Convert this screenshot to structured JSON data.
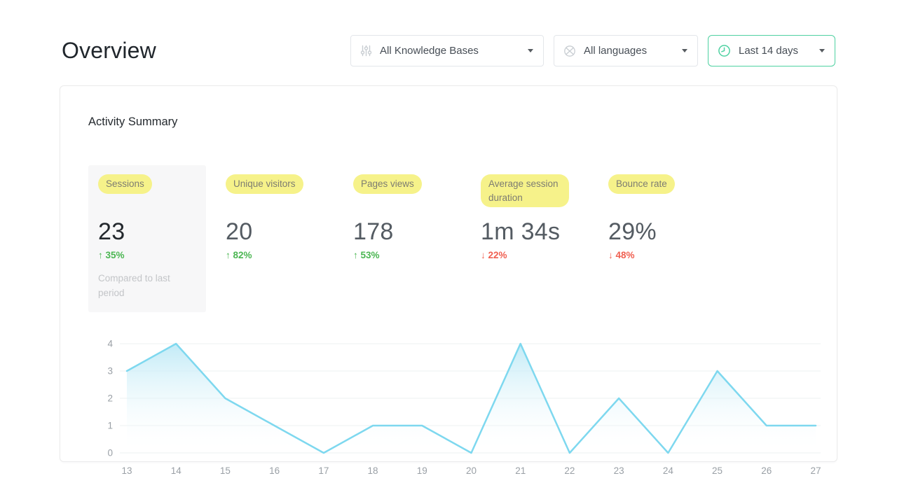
{
  "page": {
    "title": "Overview"
  },
  "filters": {
    "knowledge_bases": {
      "label": "All Knowledge Bases",
      "icon": "sliders-icon"
    },
    "languages": {
      "label": "All languages",
      "icon": "globe-icon"
    },
    "date_range": {
      "label": "Last 14 days",
      "icon": "clock-icon",
      "accent": "#4ed1a1"
    }
  },
  "card": {
    "title": "Activity Summary",
    "metrics": [
      {
        "label": "Sessions",
        "value": "23",
        "delta": "35%",
        "direction": "up",
        "note": "Compared to last period",
        "selected": true
      },
      {
        "label": "Unique visitors",
        "value": "20",
        "delta": "82%",
        "direction": "up",
        "note": "",
        "selected": false
      },
      {
        "label": "Pages views",
        "value": "178",
        "delta": "53%",
        "direction": "up",
        "note": "",
        "selected": false
      },
      {
        "label": "Average session duration",
        "value": "1m 34s",
        "delta": "22%",
        "direction": "down",
        "note": "",
        "selected": false
      },
      {
        "label": "Bounce rate",
        "value": "29%",
        "delta": "48%",
        "direction": "down",
        "note": "",
        "selected": false
      }
    ]
  },
  "icons": {
    "arrow_up": "↑",
    "arrow_down": "↓"
  },
  "chart_data": {
    "type": "area",
    "title": "Sessions per day",
    "x": [
      13,
      14,
      15,
      16,
      17,
      18,
      19,
      20,
      21,
      22,
      23,
      24,
      25,
      26,
      27
    ],
    "values": [
      3,
      4,
      2,
      1,
      0,
      1,
      1,
      0,
      4,
      0,
      2,
      0,
      3,
      1,
      1
    ],
    "xlabel": "",
    "ylabel": "",
    "ylim": [
      0,
      4
    ],
    "yticks": [
      0,
      1,
      2,
      3,
      4
    ],
    "grid": true,
    "legend": false,
    "line_color": "#7ed8ef",
    "fill_top_color": "#b7e7f5",
    "grid_color": "#eef0f1"
  },
  "colors": {
    "accent_green": "#4ed1a1",
    "delta_up": "#4bb652",
    "delta_down": "#f05f50",
    "highlight_yellow": "#f6f28a"
  }
}
